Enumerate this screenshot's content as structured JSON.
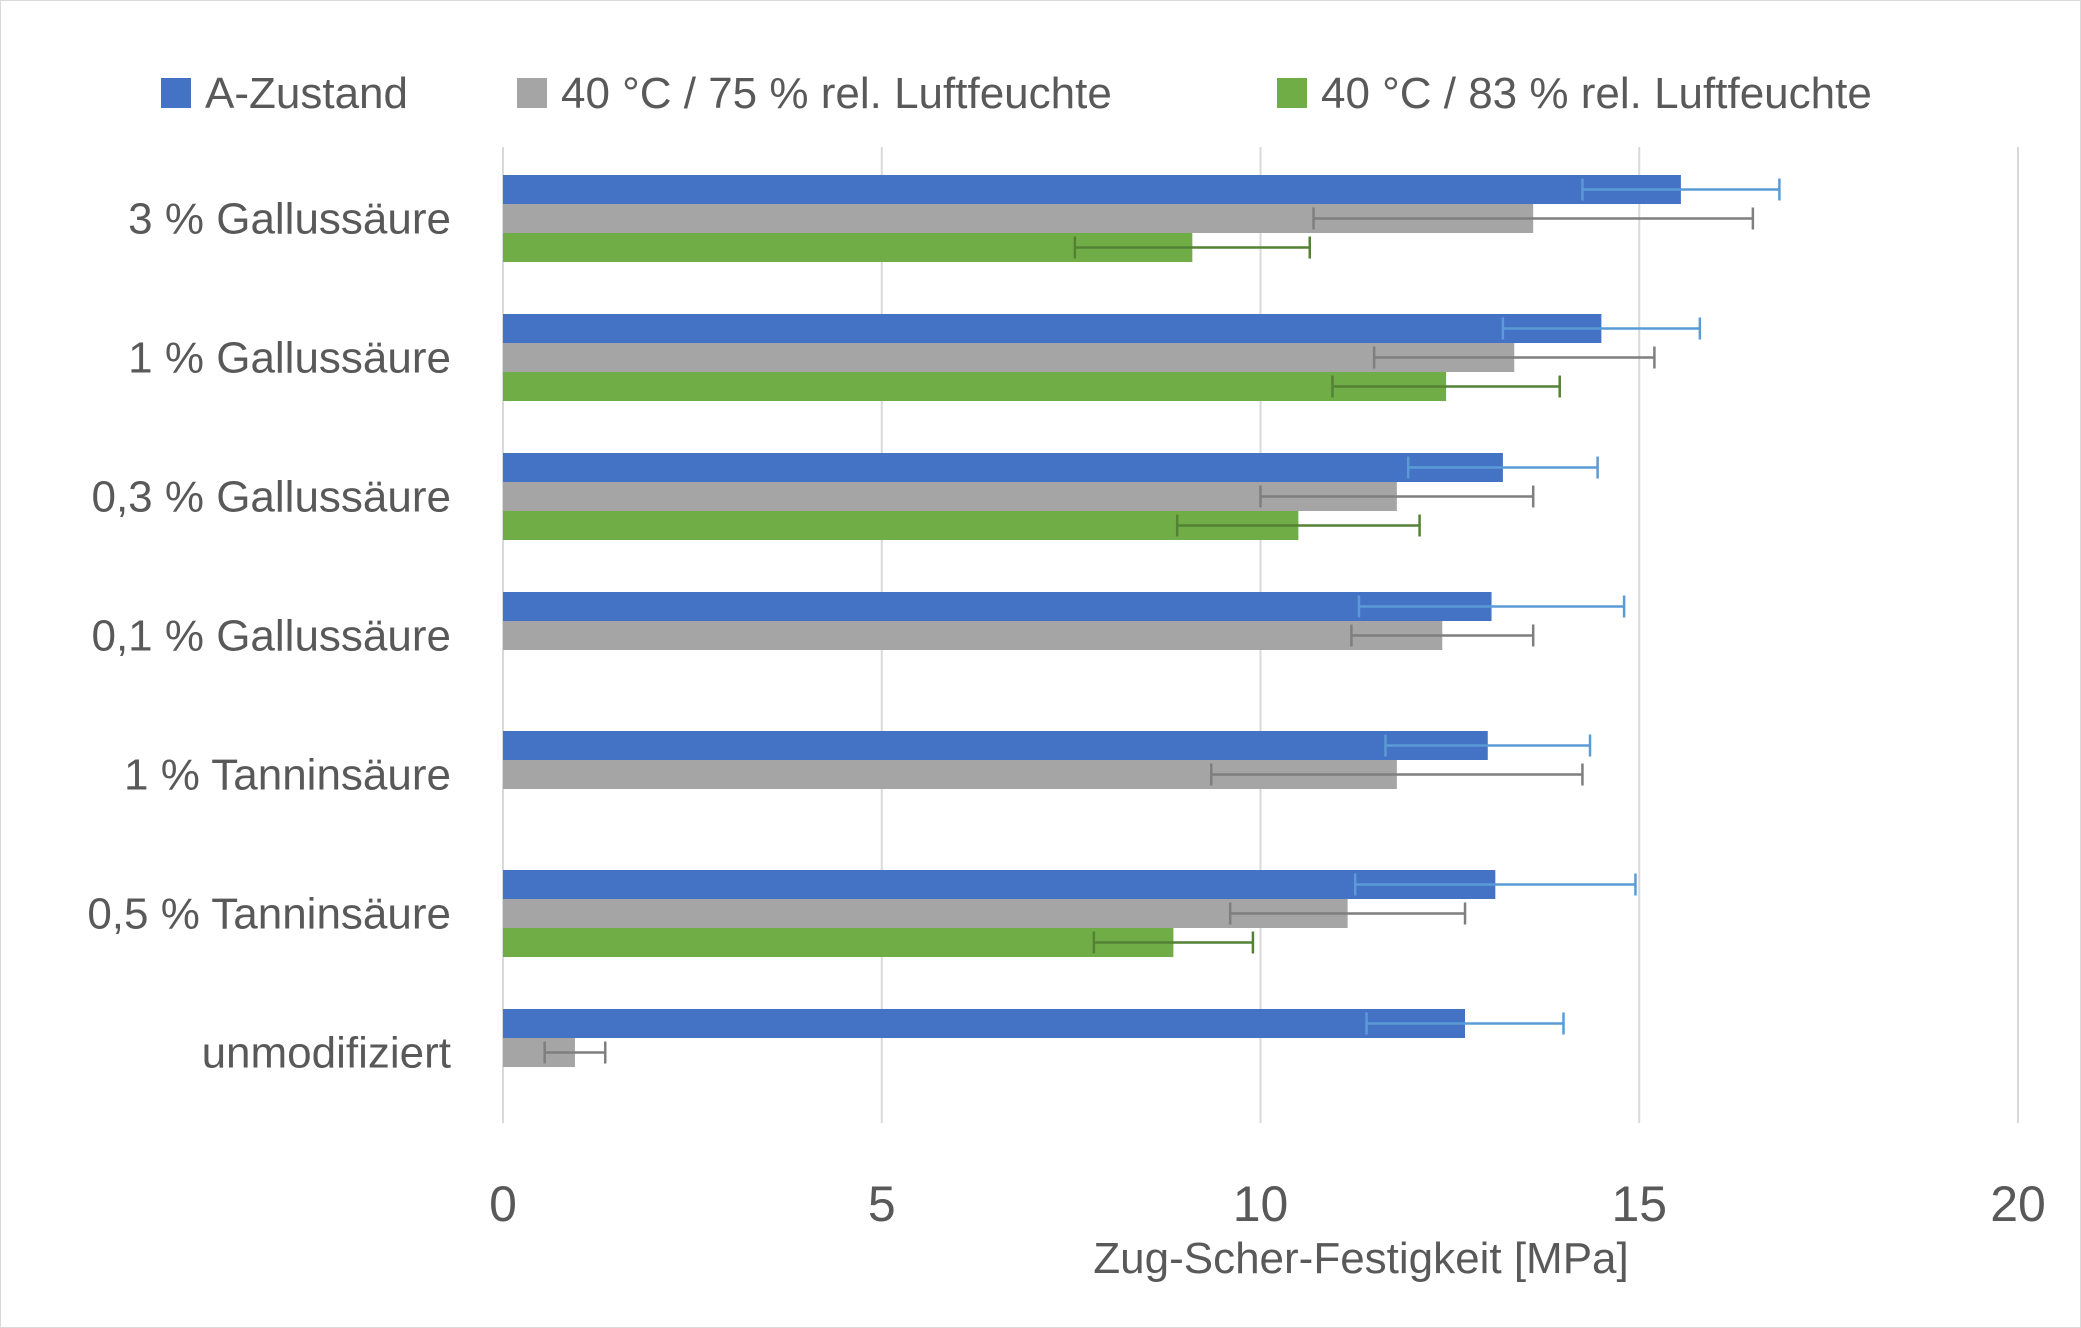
{
  "chart_data": {
    "type": "bar",
    "orientation": "horizontal",
    "title": "",
    "xlabel": "Zug-Scher-Festigkeit [MPa]",
    "ylabel": "",
    "xlim": [
      0,
      20
    ],
    "xticks": [
      0,
      5,
      10,
      15,
      20
    ],
    "grid": "vertical",
    "legend_position": "top",
    "categories": [
      "3 % Gallussäure",
      "1 % Gallussäure",
      "0,3 % Gallussäure",
      "0,1 % Gallussäure",
      "1 % Tanninsäure",
      "0,5 % Tanninsäure",
      "unmodifiziert"
    ],
    "series": [
      {
        "name": "A-Zustand",
        "color": "#4472c4",
        "error_color": "#5b9bd5",
        "values": [
          15.55,
          14.5,
          13.2,
          13.05,
          13.0,
          13.1,
          12.7
        ],
        "errors": [
          1.3,
          1.3,
          1.25,
          1.75,
          1.35,
          1.85,
          1.3
        ]
      },
      {
        "name": "40 °C / 75 % rel. Luftfeuchte",
        "color": "#a5a5a5",
        "error_color": "#7f7f7f",
        "values": [
          13.6,
          13.35,
          11.8,
          12.4,
          11.8,
          11.15,
          0.95
        ],
        "errors": [
          2.9,
          1.85,
          1.8,
          1.2,
          2.45,
          1.55,
          0.4
        ]
      },
      {
        "name": "40 °C / 83 % rel. Luftfeuchte",
        "color": "#70ad47",
        "error_color": "#548235",
        "values": [
          9.1,
          12.45,
          10.5,
          null,
          null,
          8.85,
          null
        ],
        "errors": [
          1.55,
          1.5,
          1.6,
          null,
          null,
          1.05,
          null
        ]
      }
    ]
  }
}
